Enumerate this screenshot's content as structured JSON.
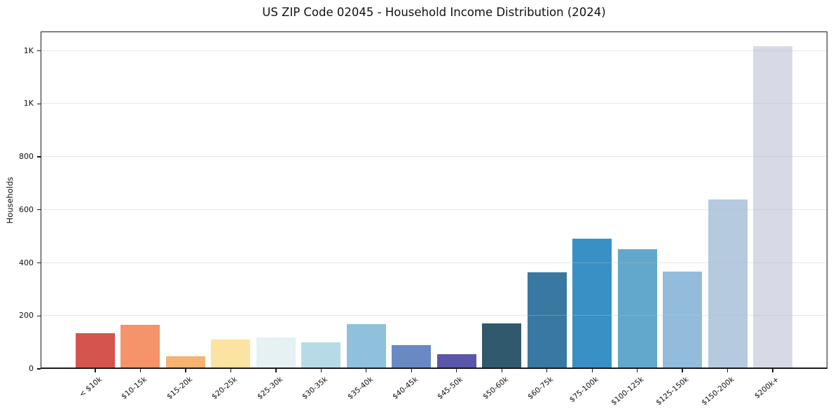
{
  "chart_data": {
    "type": "bar",
    "title": "US ZIP Code 02045 - Household Income Distribution (2024)",
    "xlabel": "",
    "ylabel": "Households",
    "categories": [
      "< $10k",
      "$10-15k",
      "$15-20k",
      "$20-25k",
      "$25-30k",
      "$30-35k",
      "$35-40k",
      "$40-45k",
      "$45-50k",
      "$50-60k",
      "$60-75k",
      "$75-100k",
      "$100-125k",
      "$125-150k",
      "$150-200k",
      "$200k+"
    ],
    "values": [
      135,
      166,
      48,
      112,
      120,
      100,
      168,
      89,
      56,
      171,
      364,
      490,
      452,
      366,
      638,
      1217
    ],
    "bar_colors": [
      "#d5544e",
      "#f5936a",
      "#f8b271",
      "#fce3a2",
      "#e6f1f3",
      "#b6dbe6",
      "#8fc1dd",
      "#6889c3",
      "#5a56aa",
      "#30596e",
      "#3878a1",
      "#3890c5",
      "#61a8cc",
      "#93bcdc",
      "#b5c9df",
      "#d7dae6"
    ],
    "ytick_values": [
      0,
      200,
      400,
      600,
      800,
      1000,
      1200
    ],
    "ytick_labels": [
      "0",
      "200",
      "400",
      "600",
      "800",
      "1K",
      "1K"
    ],
    "ylim": [
      0,
      1273
    ],
    "grid": "horizontal",
    "grid_color": "#e9e9ec",
    "background_color": "#ffffff",
    "axis_color": "#1a1a1a",
    "legend": "none"
  }
}
